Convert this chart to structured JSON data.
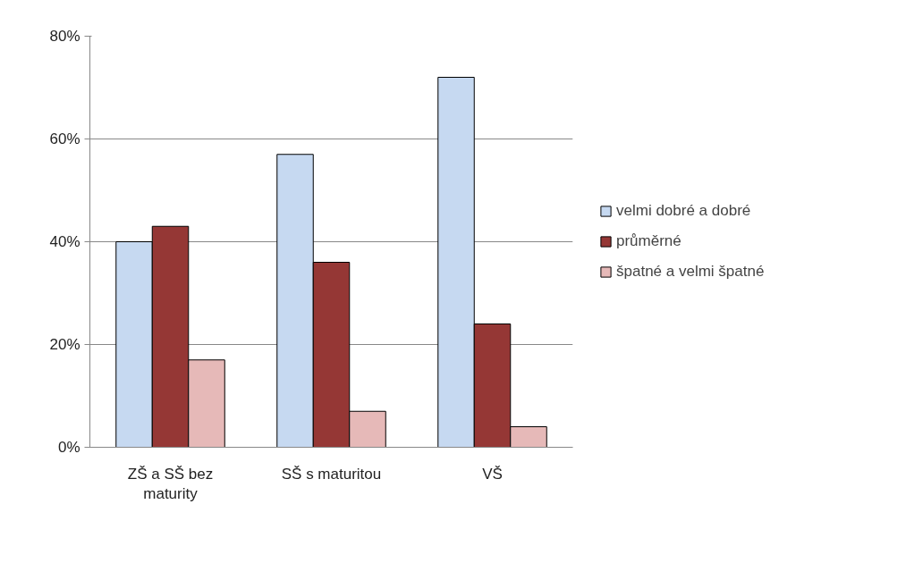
{
  "chart_data": {
    "type": "bar",
    "categories": [
      "ZŠ a SŠ bez maturity",
      "SŠ s maturitou",
      "VŠ"
    ],
    "series": [
      {
        "name": "velmi dobré a dobré",
        "color": "#c6d9f1",
        "values": [
          40,
          57,
          72
        ]
      },
      {
        "name": "průměrné",
        "color": "#953735",
        "values": [
          43,
          36,
          24
        ]
      },
      {
        "name": "špatné a velmi špatné",
        "color": "#e6b9b8",
        "values": [
          17,
          7,
          4
        ]
      }
    ],
    "ylim": [
      0,
      80
    ],
    "yticks": [
      {
        "value": 0,
        "label": "0%"
      },
      {
        "value": 20,
        "label": "20%"
      },
      {
        "value": 40,
        "label": "40%"
      },
      {
        "value": 60,
        "label": "60%"
      },
      {
        "value": 80,
        "label": "80%"
      }
    ],
    "grid": "y",
    "legend": "right"
  }
}
